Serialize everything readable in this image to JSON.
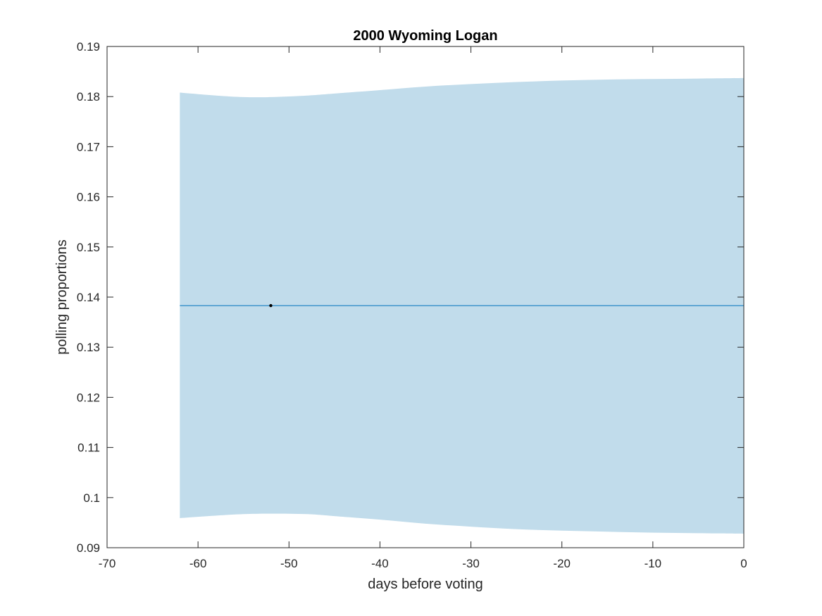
{
  "chart_data": {
    "type": "line",
    "title": "2000 Wyoming Logan",
    "xlabel": "days before voting",
    "ylabel": "polling proportions",
    "xlim": [
      -70,
      0
    ],
    "ylim": [
      0.09,
      0.19
    ],
    "xticks": [
      -70,
      -60,
      -50,
      -40,
      -30,
      -20,
      -10,
      0
    ],
    "yticks": [
      0.09,
      0.1,
      0.11,
      0.12,
      0.13,
      0.14,
      0.15,
      0.16,
      0.17,
      0.18,
      0.19
    ],
    "xtick_labels": [
      "-70",
      "-60",
      "-50",
      "-40",
      "-30",
      "-20",
      "-10",
      "0"
    ],
    "ytick_labels": [
      "0.09",
      "0.1",
      "0.11",
      "0.12",
      "0.13",
      "0.14",
      "0.15",
      "0.16",
      "0.17",
      "0.18",
      "0.19"
    ],
    "grid": false,
    "band": {
      "color": "#c1dceb",
      "x": [
        -62,
        -58,
        -55,
        -52,
        -48,
        -45,
        -40,
        -35,
        -30,
        -25,
        -20,
        -15,
        -10,
        -5,
        0
      ],
      "upper": [
        0.1808,
        0.1802,
        0.1799,
        0.1799,
        0.1802,
        0.1806,
        0.1813,
        0.182,
        0.1825,
        0.1829,
        0.1832,
        0.1834,
        0.1835,
        0.1836,
        0.1837
      ],
      "lower": [
        0.0959,
        0.0964,
        0.0967,
        0.0968,
        0.0967,
        0.0963,
        0.0956,
        0.0948,
        0.0942,
        0.0937,
        0.0934,
        0.0932,
        0.093,
        0.0929,
        0.0928
      ]
    },
    "series": [
      {
        "x": [
          -62,
          0
        ],
        "values": [
          0.1383,
          0.1383
        ],
        "color": "#0072bd"
      }
    ],
    "points": [
      {
        "x": -52,
        "y": 0.1383,
        "color": "#000000"
      }
    ]
  }
}
